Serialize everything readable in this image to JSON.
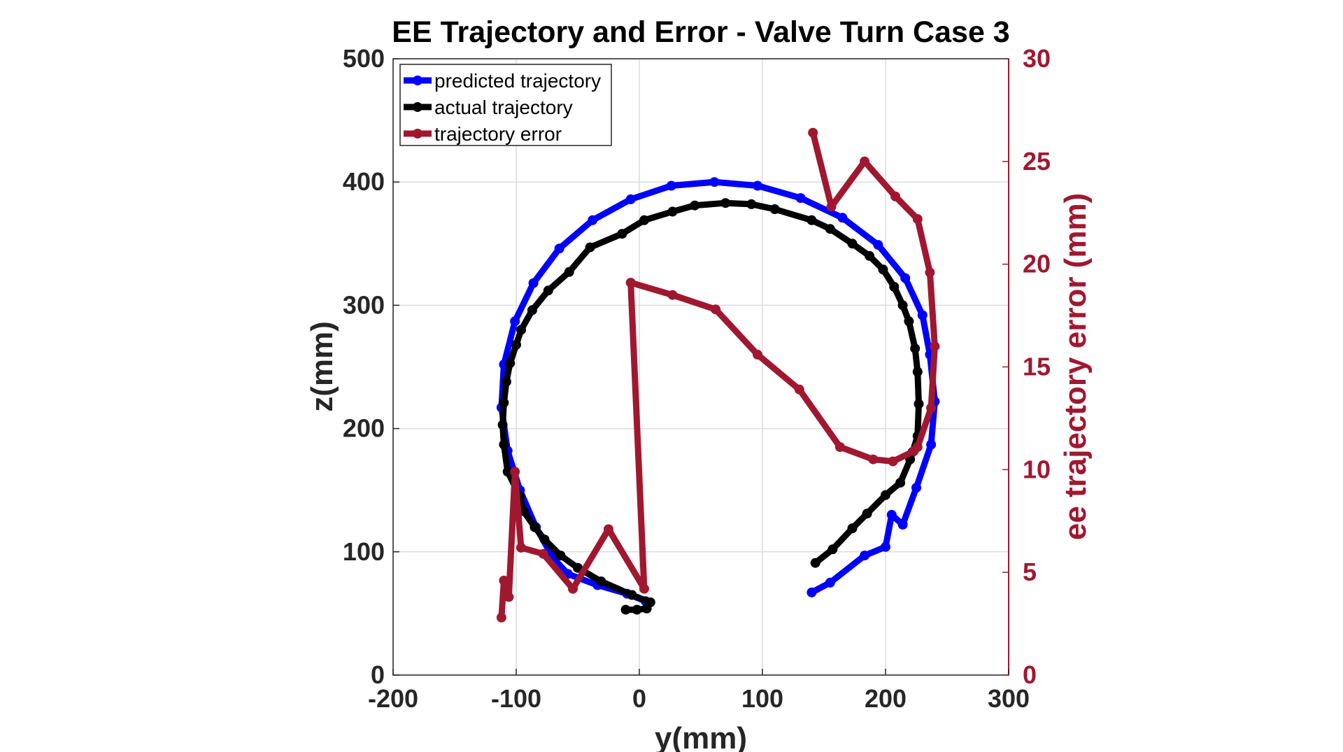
{
  "chart_data": {
    "type": "line",
    "title": "EE Trajectory and Error - Valve Turn Case 3",
    "xlabel": "y(mm)",
    "ylabel": "z(mm)",
    "ylabel_right": "ee trajectory error (mm)",
    "xlim": [
      -200,
      300
    ],
    "ylim": [
      0,
      500
    ],
    "ylim_right": [
      0,
      30
    ],
    "xticks": [
      "-200",
      "-100",
      "0",
      "100",
      "200",
      "300"
    ],
    "yticks": [
      "0",
      "100",
      "200",
      "300",
      "400",
      "500"
    ],
    "yticks_right": [
      "0",
      "5",
      "10",
      "15",
      "20",
      "25",
      "30"
    ],
    "grid": true,
    "legend_position": "top-left",
    "colors": {
      "predicted": "#0000ff",
      "actual": "#000000",
      "error": "#a01830",
      "axis_right": "#a01830"
    },
    "series": [
      {
        "name": "predicted trajectory",
        "axis": "left",
        "color": "#0000ff",
        "points": [
          [
            140,
            67
          ],
          [
            155,
            75
          ],
          [
            183,
            97
          ],
          [
            200,
            104
          ],
          [
            205,
            130
          ],
          [
            214,
            122
          ],
          [
            225,
            152
          ],
          [
            237,
            187
          ],
          [
            240,
            222
          ],
          [
            236,
            260
          ],
          [
            230,
            292
          ],
          [
            216,
            322
          ],
          [
            194,
            349
          ],
          [
            165,
            371
          ],
          [
            131,
            387
          ],
          [
            96,
            397
          ],
          [
            61,
            400
          ],
          [
            26,
            397
          ],
          [
            -7,
            386
          ],
          [
            -38,
            369
          ],
          [
            -65,
            346
          ],
          [
            -86,
            318
          ],
          [
            -101,
            287
          ],
          [
            -110,
            252
          ],
          [
            -112,
            217
          ],
          [
            -107,
            182
          ],
          [
            -97,
            150
          ],
          [
            -84,
            120
          ],
          [
            -70,
            95
          ],
          [
            -58,
            82
          ],
          [
            -34,
            73
          ],
          [
            -10,
            66
          ],
          [
            5,
            60
          ]
        ]
      },
      {
        "name": "actual trajectory",
        "axis": "left",
        "color": "#000000",
        "points": [
          [
            143,
            91
          ],
          [
            157,
            102
          ],
          [
            173,
            119
          ],
          [
            185,
            131
          ],
          [
            200,
            146
          ],
          [
            212,
            156
          ],
          [
            220,
            175
          ],
          [
            222,
            181
          ],
          [
            226,
            194
          ],
          [
            227,
            220
          ],
          [
            226,
            246
          ],
          [
            224,
            265
          ],
          [
            219,
            287
          ],
          [
            214,
            300
          ],
          [
            207,
            315
          ],
          [
            198,
            329
          ],
          [
            187,
            340
          ],
          [
            173,
            350
          ],
          [
            155,
            362
          ],
          [
            140,
            369
          ],
          [
            110,
            378
          ],
          [
            91,
            382
          ],
          [
            70,
            383
          ],
          [
            45,
            381
          ],
          [
            27,
            376
          ],
          [
            4,
            369
          ],
          [
            -14,
            358
          ],
          [
            -40,
            347
          ],
          [
            -57,
            327
          ],
          [
            -74,
            312
          ],
          [
            -87,
            296
          ],
          [
            -96,
            280
          ],
          [
            -100,
            268
          ],
          [
            -105,
            253
          ],
          [
            -108,
            238
          ],
          [
            -110,
            221
          ],
          [
            -111,
            203
          ],
          [
            -110,
            187
          ],
          [
            -107,
            165
          ],
          [
            -97,
            145
          ],
          [
            -94,
            133
          ],
          [
            -85,
            120
          ],
          [
            -77,
            110
          ],
          [
            -64,
            97
          ],
          [
            -50,
            87
          ],
          [
            -31,
            76
          ],
          [
            -6,
            65
          ],
          [
            9,
            59
          ],
          [
            6,
            54
          ],
          [
            -2,
            53
          ],
          [
            -11,
            53
          ]
        ]
      },
      {
        "name": "trajectory error",
        "axis": "right",
        "color": "#a01830",
        "points": [
          [
            -112,
            2.8
          ],
          [
            -110,
            4.6
          ],
          [
            -106,
            3.8
          ],
          [
            -101,
            9.9
          ],
          [
            -96,
            6.2
          ],
          [
            -78,
            5.9
          ],
          [
            -54,
            4.2
          ],
          [
            -25,
            7.1
          ],
          [
            4,
            4.2
          ],
          [
            -7,
            19.1
          ],
          [
            27,
            18.5
          ],
          [
            62,
            17.8
          ],
          [
            96,
            15.6
          ],
          [
            130,
            13.9
          ],
          [
            163,
            11.1
          ],
          [
            190,
            10.5
          ],
          [
            206,
            10.4
          ],
          [
            223,
            10.9
          ],
          [
            226,
            11.1
          ],
          [
            237,
            13.0
          ],
          [
            240,
            16.0
          ],
          [
            236,
            19.6
          ],
          [
            226,
            22.2
          ],
          [
            208,
            23.3
          ],
          [
            183,
            25.0
          ],
          [
            156,
            22.8
          ],
          [
            141,
            26.4
          ]
        ]
      }
    ]
  }
}
